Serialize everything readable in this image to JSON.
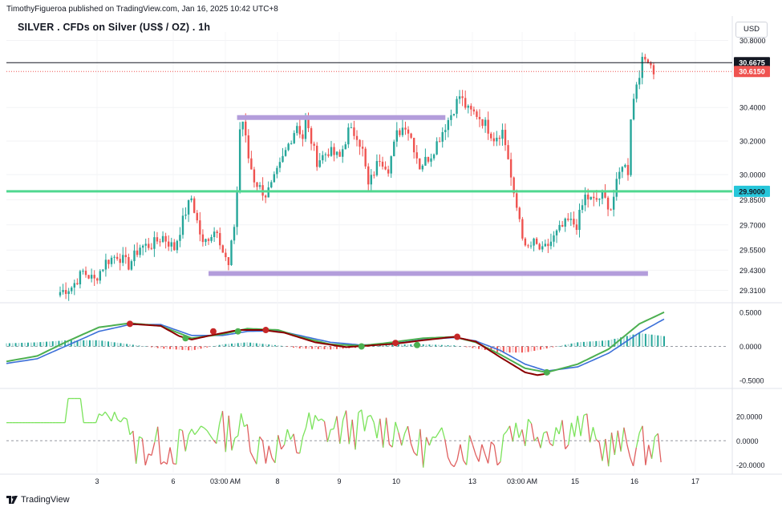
{
  "header": {
    "publisher": "TimothyFigueroa published on TradingView.com, Jan 16, 2025 10:42 UTC+8",
    "symbol": "SILVER . CFDs on Silver (US$ / OZ) . 1h",
    "currency": "USD"
  },
  "footer": {
    "brand": "TradingView"
  },
  "colors": {
    "up": "#26a69a",
    "down": "#ef5350",
    "support": "#50d890",
    "range": "#b39ddb",
    "macd_fast": "#4caf50",
    "macd_slow": "#3b6fd8",
    "macd_dark": "#8b0000",
    "rsi_up": "#7be35b",
    "rsi_down": "#e06060"
  },
  "chart_data": [
    {
      "type": "candlestick",
      "name": "price",
      "ylim": [
        29.25,
        30.85
      ],
      "y_ticks": [
        "30.8000",
        "30.4000",
        "30.2000",
        "30.0000",
        "29.8500",
        "29.7000",
        "29.5500",
        "29.4300",
        "29.3100"
      ],
      "x_ticks": [
        "3",
        "6",
        "03:00 AM",
        "8",
        "9",
        "10",
        "13",
        "03:00 AM",
        "15",
        "16",
        "17"
      ],
      "price_labels": [
        {
          "text": "30.6675",
          "value": 30.6675,
          "style": "dark"
        },
        {
          "text": "30.6150",
          "value": 30.615,
          "style": "red"
        },
        {
          "text": "29.9000",
          "value": 29.9,
          "style": "teal"
        }
      ],
      "horizontal_lines": [
        {
          "name": "last-price",
          "value": 30.6675,
          "style": "black"
        },
        {
          "name": "bid-price",
          "value": 30.615,
          "style": "red-dotted"
        },
        {
          "name": "support",
          "value": 29.9,
          "style": "green"
        }
      ],
      "range_lines": [
        {
          "name": "resistance-range",
          "value": 30.34,
          "start_bar": 62,
          "end_bar": 135
        },
        {
          "name": "support-range",
          "value": 29.41,
          "start_bar": 52,
          "end_bar": 206
        }
      ],
      "close_path": [
        [
          0,
          29.3
        ],
        [
          4,
          29.33
        ],
        [
          8,
          29.42
        ],
        [
          12,
          29.37
        ],
        [
          16,
          29.48
        ],
        [
          20,
          29.52
        ],
        [
          24,
          29.46
        ],
        [
          28,
          29.57
        ],
        [
          32,
          29.58
        ],
        [
          36,
          29.63
        ],
        [
          40,
          29.56
        ],
        [
          44,
          29.78
        ],
        [
          46,
          29.86
        ],
        [
          48,
          29.72
        ],
        [
          50,
          29.58
        ],
        [
          52,
          29.63
        ],
        [
          55,
          29.68
        ],
        [
          57,
          29.54
        ],
        [
          59,
          29.45
        ],
        [
          61,
          29.7
        ],
        [
          62,
          29.9
        ],
        [
          63,
          30.27
        ],
        [
          64,
          30.32
        ],
        [
          66,
          30.1
        ],
        [
          68,
          29.97
        ],
        [
          70,
          29.92
        ],
        [
          72,
          29.88
        ],
        [
          74,
          29.93
        ],
        [
          77,
          30.05
        ],
        [
          80,
          30.18
        ],
        [
          83,
          30.3
        ],
        [
          85,
          30.22
        ],
        [
          86,
          30.32
        ],
        [
          88,
          30.2
        ],
        [
          90,
          30.08
        ],
        [
          94,
          30.14
        ],
        [
          98,
          30.1
        ],
        [
          101,
          30.26
        ],
        [
          104,
          30.24
        ],
        [
          106,
          30.14
        ],
        [
          108,
          29.93
        ],
        [
          112,
          30.1
        ],
        [
          115,
          30.04
        ],
        [
          118,
          30.24
        ],
        [
          121,
          30.3
        ],
        [
          123,
          30.22
        ],
        [
          126,
          30.05
        ],
        [
          130,
          30.12
        ],
        [
          134,
          30.26
        ],
        [
          137,
          30.36
        ],
        [
          140,
          30.47
        ],
        [
          143,
          30.38
        ],
        [
          146,
          30.36
        ],
        [
          149,
          30.3
        ],
        [
          152,
          30.22
        ],
        [
          155,
          30.26
        ],
        [
          157,
          30.1
        ],
        [
          159,
          29.86
        ],
        [
          161,
          29.74
        ],
        [
          163,
          29.55
        ],
        [
          166,
          29.59
        ],
        [
          169,
          29.54
        ],
        [
          172,
          29.6
        ],
        [
          175,
          29.67
        ],
        [
          178,
          29.72
        ],
        [
          181,
          29.7
        ],
        [
          184,
          29.87
        ],
        [
          187,
          29.84
        ],
        [
          190,
          29.87
        ],
        [
          193,
          29.8
        ],
        [
          195,
          29.94
        ],
        [
          197,
          30.07
        ],
        [
          199,
          30.02
        ],
        [
          200,
          30.35
        ],
        [
          202,
          30.55
        ],
        [
          204,
          30.67
        ],
        [
          206,
          30.7
        ],
        [
          207,
          30.66
        ],
        [
          208,
          30.62
        ]
      ],
      "bars": 209
    },
    {
      "type": "line",
      "name": "MACD",
      "ylim": [
        -0.58,
        0.58
      ],
      "y_ticks": [
        "0.5000",
        "0.0000",
        "-0.5000"
      ],
      "series": [
        {
          "values": [
            [
              0,
              -0.22
            ],
            [
              10,
              -0.14
            ],
            [
              20,
              0.08
            ],
            [
              30,
              0.28
            ],
            [
              40,
              0.34
            ],
            [
              50,
              0.3
            ],
            [
              60,
              0.12
            ],
            [
              70,
              0.18
            ],
            [
              78,
              0.26
            ],
            [
              88,
              0.24
            ],
            [
              95,
              0.14
            ],
            [
              105,
              0.03
            ],
            [
              115,
              0.01
            ],
            [
              125,
              0.06
            ],
            [
              135,
              0.12
            ],
            [
              145,
              0.14
            ],
            [
              152,
              0.06
            ],
            [
              160,
              -0.12
            ],
            [
              168,
              -0.32
            ],
            [
              175,
              -0.38
            ],
            [
              185,
              -0.26
            ],
            [
              195,
              -0.04
            ],
            [
              205,
              0.33
            ],
            [
              213,
              0.5
            ]
          ]
        },
        {
          "values": [
            [
              0,
              -0.25
            ],
            [
              10,
              -0.18
            ],
            [
              20,
              0.02
            ],
            [
              30,
              0.22
            ],
            [
              40,
              0.32
            ],
            [
              50,
              0.32
            ],
            [
              60,
              0.16
            ],
            [
              70,
              0.16
            ],
            [
              78,
              0.22
            ],
            [
              88,
              0.23
            ],
            [
              95,
              0.16
            ],
            [
              105,
              0.06
            ],
            [
              115,
              0.02
            ],
            [
              125,
              0.04
            ],
            [
              135,
              0.1
            ],
            [
              145,
              0.13
            ],
            [
              152,
              0.08
            ],
            [
              160,
              -0.06
            ],
            [
              168,
              -0.26
            ],
            [
              175,
              -0.36
            ],
            [
              185,
              -0.3
            ],
            [
              195,
              -0.1
            ],
            [
              205,
              0.2
            ],
            [
              213,
              0.4
            ]
          ]
        },
        {
          "values": [
            [
              40,
              0.33
            ],
            [
              50,
              0.3
            ],
            [
              56,
              0.15
            ],
            [
              60,
              0.1
            ],
            [
              66,
              0.16
            ],
            [
              75,
              0.24
            ],
            [
              83,
              0.24
            ],
            [
              90,
              0.2
            ],
            [
              100,
              0.06
            ],
            [
              110,
              -0.01
            ],
            [
              120,
              0.02
            ],
            [
              126,
              0.04
            ],
            [
              135,
              0.09
            ],
            [
              145,
              0.14
            ],
            [
              152,
              0.07
            ],
            [
              160,
              -0.16
            ],
            [
              168,
              -0.38
            ],
            [
              172,
              -0.42
            ],
            [
              176,
              -0.39
            ]
          ]
        }
      ],
      "markers": [
        [
          40,
          0.33,
          "down"
        ],
        [
          58,
          0.12,
          "up"
        ],
        [
          67,
          0.22,
          "down"
        ],
        [
          75,
          0.22,
          "up"
        ],
        [
          84,
          0.24,
          "down"
        ],
        [
          115,
          0.0,
          "up"
        ],
        [
          126,
          0.05,
          "down"
        ],
        [
          133,
          0.02,
          "up"
        ],
        [
          146,
          0.14,
          "down"
        ],
        [
          175,
          -0.38,
          "up"
        ]
      ]
    },
    {
      "type": "line",
      "name": "oscillator",
      "ylim": [
        -25,
        40
      ],
      "y_ticks": [
        "20.0000",
        "0.0000",
        "-20.0000"
      ]
    }
  ]
}
